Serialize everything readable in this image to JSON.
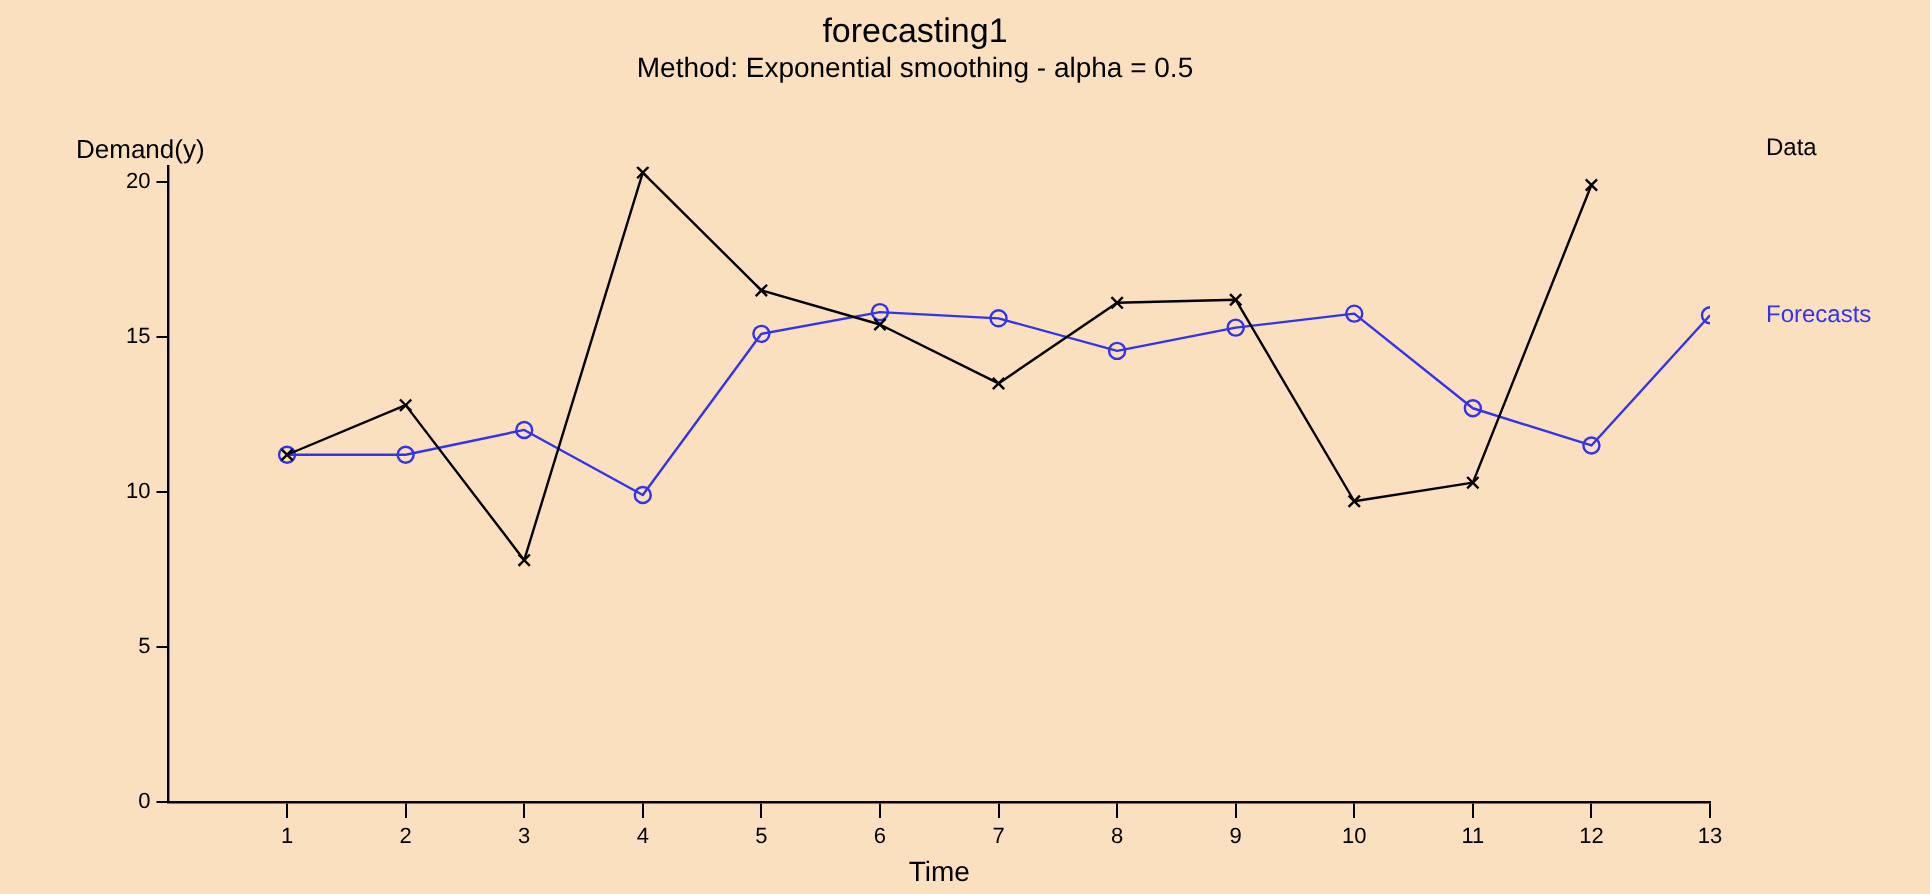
{
  "chart_data": {
    "type": "line",
    "title": "forecasting1",
    "subtitle": "Method: Exponential smoothing - alpha = 0.5",
    "xlabel": "Time",
    "ylabel": "Demand(y)",
    "x": [
      1,
      2,
      3,
      4,
      5,
      6,
      7,
      8,
      9,
      10,
      11,
      12,
      13
    ],
    "series": [
      {
        "name": "Data",
        "color": "#000000",
        "marker": "cross",
        "values": [
          11.2,
          12.8,
          7.8,
          20.3,
          16.5,
          15.4,
          13.5,
          16.1,
          16.2,
          9.7,
          10.3,
          19.9,
          null
        ]
      },
      {
        "name": "Forecasts",
        "color": "#3333ee",
        "marker": "circle",
        "values": [
          11.2,
          11.2,
          12.0,
          9.9,
          15.1,
          15.8,
          15.6,
          14.55,
          15.3,
          15.75,
          12.7,
          11.5,
          15.7
        ]
      }
    ],
    "xlim": [
      0,
      13
    ],
    "xticks": [
      1,
      2,
      3,
      4,
      5,
      6,
      7,
      8,
      9,
      10,
      11,
      12,
      13
    ],
    "ylim": [
      0,
      20.5
    ],
    "yticks": [
      0,
      5,
      10,
      15,
      20
    ],
    "grid": false,
    "legend": "right"
  }
}
